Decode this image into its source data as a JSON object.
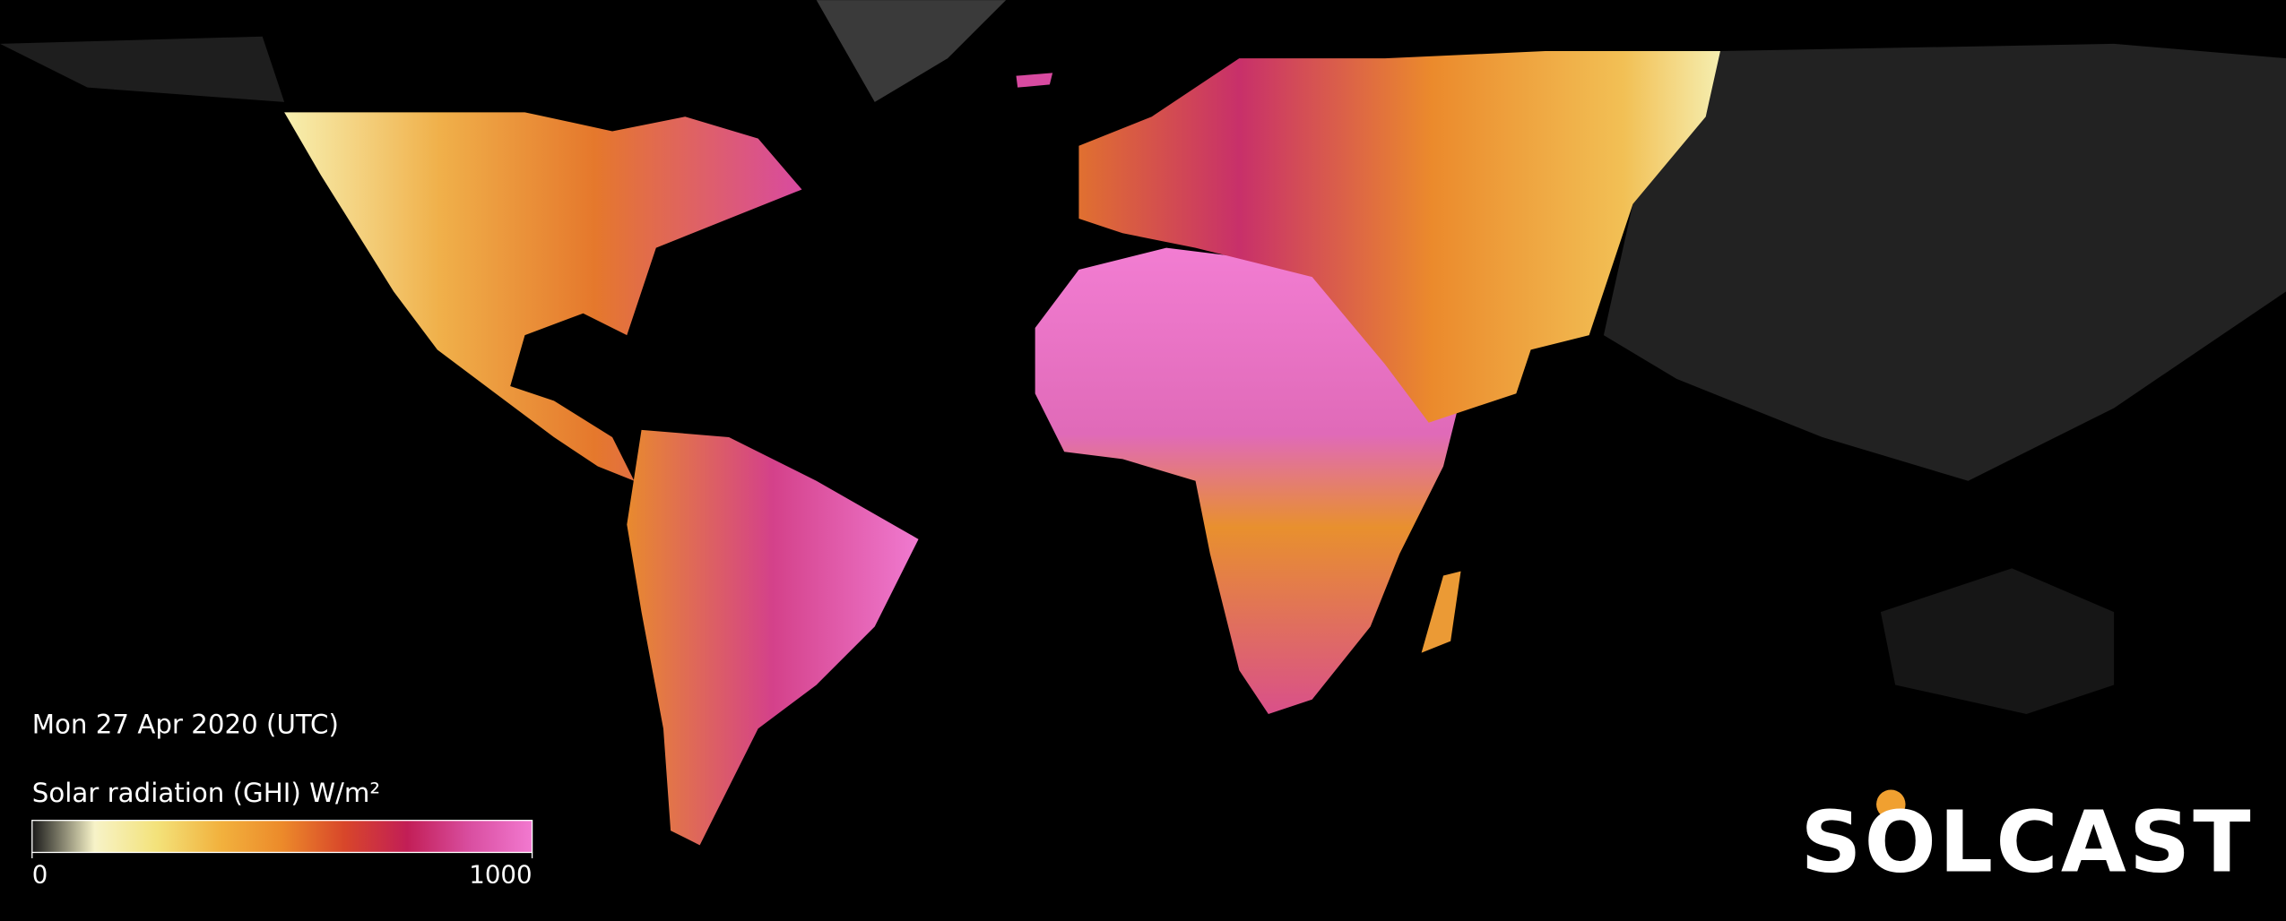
{
  "header": {
    "date": "Mon 27 Apr 2020 (UTC)"
  },
  "legend": {
    "title": "Solar radiation (GHI) W/m²",
    "ticks": [
      0,
      1000
    ],
    "colors": [
      "#1a1a1a",
      "#f7f3c8",
      "#f3e27a",
      "#f2b23e",
      "#ec8a2a",
      "#d8462a",
      "#c21e56",
      "#d94ea0",
      "#f279d0"
    ]
  },
  "logo": {
    "text": "SOLCAST"
  }
}
